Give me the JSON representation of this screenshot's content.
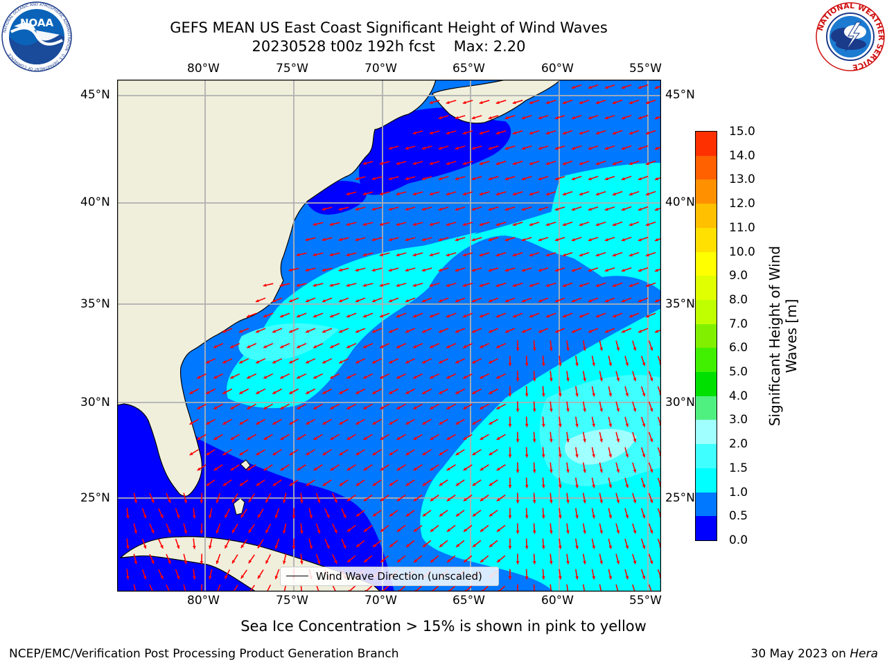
{
  "header": {
    "title_line1": "GEFS MEAN US East Coast Significant Height of Wind Waves",
    "title_line2": "20230528 t00z 192h fcst    Max: 2.20"
  },
  "logos": {
    "noaa_text": "NOAA",
    "noaa_ring_text": "NATIONAL OCEANIC AND ATMOSPHERIC ADMINISTRATION · U.S. DEPARTMENT OF COMMERCE",
    "nws_ring_text": "NATIONAL WEATHER SERVICE"
  },
  "map": {
    "lon_ticks_top": [
      "80°W",
      "75°W",
      "70°W",
      "65°W",
      "60°W",
      "55°W"
    ],
    "lon_ticks_bottom": [
      "80°W",
      "75°W",
      "70°W",
      "65°W",
      "60°W",
      "55°W"
    ],
    "lat_ticks_left": [
      "45°N",
      "40°N",
      "35°N",
      "30°N",
      "25°N"
    ],
    "lat_ticks_right": [
      "45°N",
      "40°N",
      "35°N",
      "30°N",
      "25°N"
    ],
    "extent": {
      "lon": [
        -85,
        -54.3
      ],
      "lat": [
        20.5,
        45.8
      ]
    },
    "land_color": "#efefdc",
    "arrow_color": "#ff0000",
    "legend_label": "Wind Wave Direction (unscaled)"
  },
  "colorbar": {
    "title": "Significant Height of Wind Waves [m]",
    "levels": [
      "15.0",
      "14.0",
      "13.0",
      "12.0",
      "11.0",
      "10.0",
      "9.0",
      "8.0",
      "7.0",
      "6.0",
      "5.0",
      "4.0",
      "3.0",
      "2.0",
      "1.5",
      "1.0",
      "0.5",
      "0.0"
    ],
    "colors_bottom_to_top": [
      "#0000ff",
      "#0078ff",
      "#00ffff",
      "#40ffff",
      "#a0ffff",
      "#50f080",
      "#00e000",
      "#40f000",
      "#80f000",
      "#c0ff00",
      "#e0ff00",
      "#ffff00",
      "#ffe000",
      "#ffc000",
      "#ff9000",
      "#ff6000",
      "#ff3000",
      "#ff0000"
    ]
  },
  "footer": {
    "sea_ice_note": "Sea Ice Concentration > 15% is shown in pink to yellow",
    "credit": "NCEP/EMC/Verification Post Processing Product Generation Branch",
    "date_prefix": "30 May 2023 on ",
    "date_machine": "Hera"
  }
}
